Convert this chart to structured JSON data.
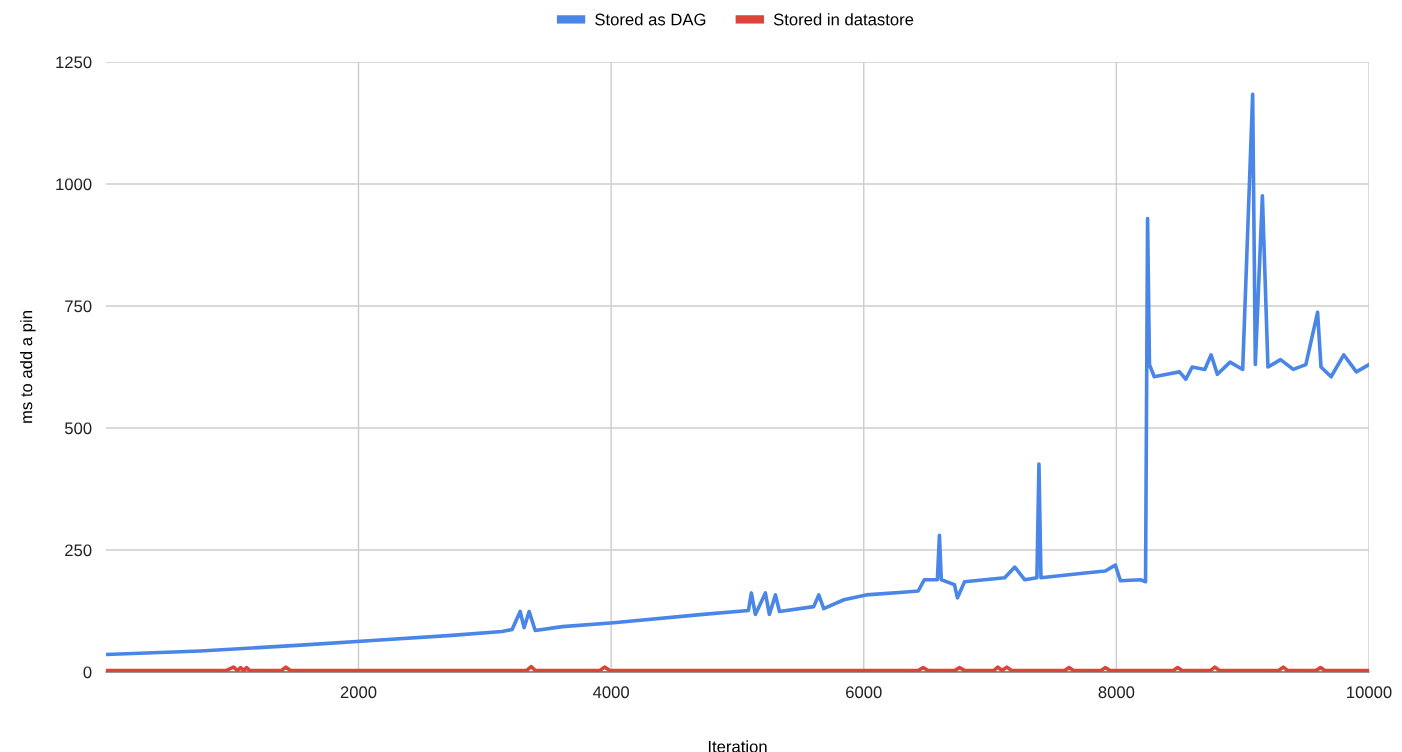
{
  "chart_data": {
    "type": "line",
    "xlabel": "Iteration",
    "ylabel": "ms to add a pin",
    "xlim": [
      1,
      10000
    ],
    "xticks": [
      2000,
      4000,
      6000,
      8000,
      10000
    ],
    "ylim": [
      0,
      1250
    ],
    "yticks": [
      0,
      250,
      500,
      750,
      1000,
      1250
    ],
    "grid": true,
    "legend": "top",
    "marker": "none",
    "line_style": "solid",
    "series": [
      {
        "name": "Stored as DAG",
        "color": "#4a86e8",
        "x": [
          1,
          748,
          1544,
          2141,
          2738,
          3136,
          3216,
          3280,
          3311,
          3351,
          3399,
          3614,
          4020,
          4728,
          5087,
          5110,
          5142,
          5221,
          5253,
          5301,
          5333,
          5604,
          5644,
          5683,
          5843,
          6018,
          6336,
          6431,
          6479,
          6583,
          6599,
          6614,
          6718,
          6742,
          6798,
          7116,
          7196,
          7275,
          7371,
          7387,
          7403,
          7753,
          7912,
          7992,
          8032,
          8191,
          8231,
          8247,
          8262,
          8300,
          8400,
          8500,
          8550,
          8600,
          8700,
          8750,
          8800,
          8900,
          9000,
          9079,
          9100,
          9156,
          9200,
          9300,
          9400,
          9500,
          9593,
          9620,
          9700,
          9800,
          9900,
          10000
        ],
        "values": [
          36,
          43,
          55,
          65,
          75,
          83,
          87,
          124,
          91,
          124,
          85,
          93,
          101,
          118,
          126,
          162,
          118,
          162,
          118,
          158,
          124,
          134,
          158,
          130,
          148,
          158,
          164,
          166,
          189,
          189,
          280,
          189,
          179,
          152,
          185,
          193,
          215,
          189,
          193,
          426,
          193,
          203,
          207,
          219,
          187,
          189,
          185,
          929,
          630,
          605,
          610,
          615,
          600,
          625,
          620,
          650,
          610,
          635,
          620,
          1184,
          630,
          976,
          625,
          640,
          620,
          630,
          737,
          625,
          605,
          650,
          615,
          630
        ]
      },
      {
        "name": "Stored in datastore",
        "color": "#db4437",
        "x": [
          1,
          950,
          1011,
          1040,
          1067,
          1090,
          1114,
          1140,
          1390,
          1425,
          1460,
          3330,
          3367,
          3400,
          3910,
          3948,
          3990,
          6430,
          6471,
          6510,
          6720,
          6758,
          6800,
          7030,
          7061,
          7095,
          7132,
          7170,
          7590,
          7626,
          7660,
          7880,
          7912,
          7950,
          8450,
          8485,
          8520,
          8745,
          8780,
          8815,
          9285,
          9321,
          9355,
          9580,
          9616,
          9650,
          10000
        ],
        "values": [
          3,
          3,
          10,
          3,
          9,
          3,
          9,
          3,
          3,
          10,
          3,
          3,
          11,
          3,
          3,
          10,
          3,
          3,
          9,
          3,
          3,
          9,
          3,
          3,
          10,
          3,
          10,
          3,
          3,
          9,
          3,
          3,
          9,
          3,
          3,
          9,
          3,
          3,
          10,
          3,
          3,
          10,
          3,
          3,
          9,
          3,
          3
        ]
      }
    ]
  }
}
